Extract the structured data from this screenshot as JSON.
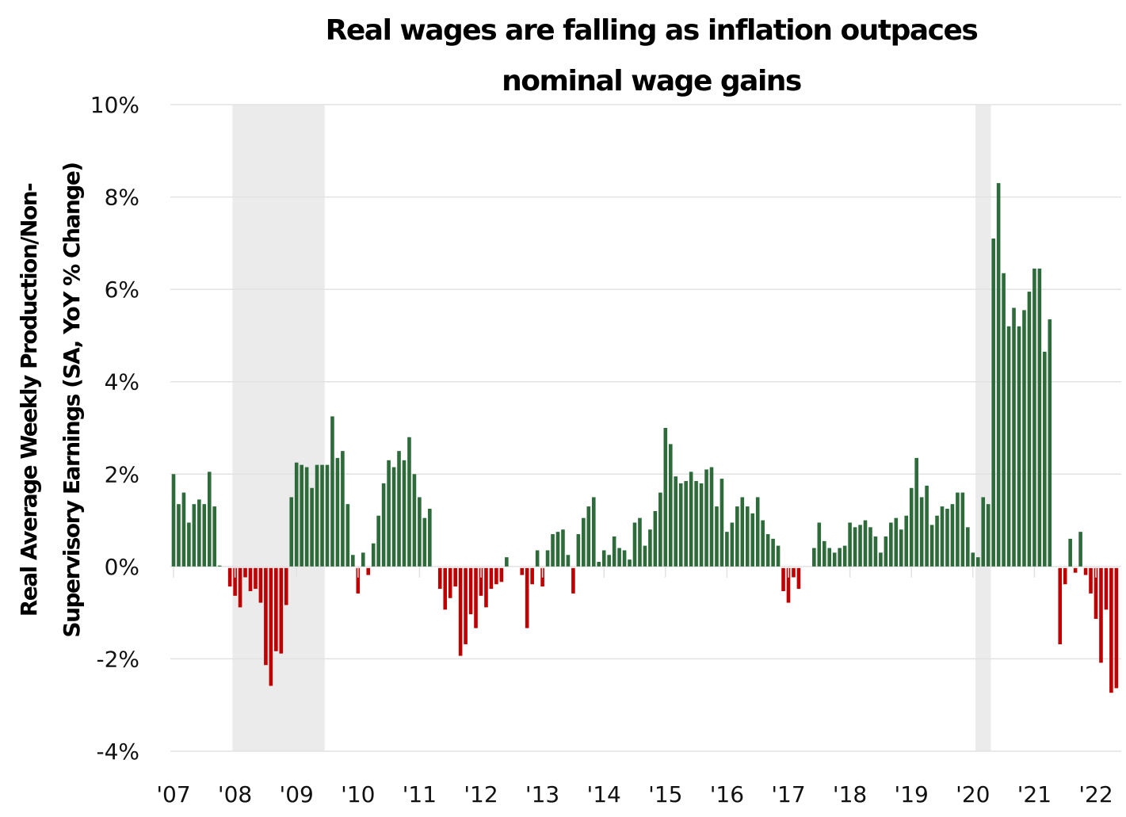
{
  "chart_data": {
    "type": "bar",
    "title": "Real wages are falling as inflation outpaces nominal wage gains",
    "title_lines": [
      "Real wages are falling as inflation outpaces",
      "nominal wage gains"
    ],
    "xlabel": "",
    "ylabel": "Real Average Weekly Production/Non-Supervisory Earnings (SA, YoY % Change)",
    "ylabel_lines": [
      "Real Average Weekly Production/Non-",
      "Supervisory Earnings (SA, YoY % Change)"
    ],
    "ylim": [
      -4,
      10
    ],
    "yticks": [
      -4,
      -2,
      0,
      2,
      4,
      6,
      8,
      10
    ],
    "ytick_labels": [
      "-4%",
      "-2%",
      "0%",
      "2%",
      "4%",
      "6%",
      "8%",
      "10%"
    ],
    "xtick_labels": [
      "'07",
      "'08",
      "'09",
      "'10",
      "'11",
      "'12",
      "'13",
      "'14",
      "'15",
      "'16",
      "'17",
      "'18",
      "'19",
      "'20",
      "'21",
      "'22"
    ],
    "start": "2007-01",
    "frequency": "monthly",
    "grid": true,
    "positive_color": "#2e6b3a",
    "negative_color": "#c00000",
    "recession_shading": [
      {
        "start": "2008-01",
        "end": "2009-06",
        "color": "#ebebeb"
      },
      {
        "start": "2020-02",
        "end": "2020-04",
        "color": "#ebebeb"
      }
    ],
    "values": [
      2.0,
      1.35,
      1.6,
      0.95,
      1.35,
      1.45,
      1.35,
      2.05,
      1.3,
      0.02,
      null,
      -0.4,
      -0.6,
      -0.85,
      -0.2,
      -0.5,
      -0.45,
      -0.75,
      -2.1,
      -2.55,
      -1.8,
      -1.85,
      -0.8,
      1.5,
      2.25,
      2.2,
      2.15,
      1.7,
      2.2,
      2.2,
      2.2,
      3.25,
      2.35,
      2.5,
      1.35,
      0.25,
      -0.55,
      0.3,
      -0.15,
      0.5,
      1.1,
      1.8,
      2.3,
      2.15,
      2.5,
      2.3,
      2.8,
      2.0,
      1.5,
      1.05,
      1.25,
      null,
      -0.45,
      -0.9,
      -0.65,
      -0.4,
      -1.9,
      -1.65,
      -1.0,
      -1.3,
      -0.6,
      -0.85,
      -0.45,
      -0.35,
      -0.3,
      0.2,
      null,
      null,
      -0.15,
      -1.3,
      -0.35,
      0.35,
      -0.4,
      0.35,
      0.7,
      0.75,
      0.8,
      0.25,
      -0.55,
      0.7,
      1.05,
      1.3,
      1.5,
      0.1,
      0.35,
      0.25,
      0.65,
      0.4,
      0.35,
      0.15,
      0.95,
      1.05,
      0.45,
      0.8,
      1.2,
      1.6,
      3.0,
      2.65,
      1.95,
      1.8,
      1.85,
      2.05,
      1.85,
      1.8,
      2.1,
      2.15,
      1.3,
      1.9,
      0.75,
      0.95,
      1.3,
      1.5,
      1.3,
      1.15,
      1.5,
      1.0,
      0.7,
      0.6,
      0.45,
      -0.5,
      -0.75,
      -0.2,
      -0.45,
      null,
      null,
      0.4,
      0.95,
      0.55,
      0.4,
      0.3,
      0.4,
      0.45,
      0.95,
      0.85,
      0.9,
      1.0,
      0.85,
      0.65,
      0.3,
      0.65,
      0.95,
      1.05,
      0.8,
      1.1,
      1.7,
      2.35,
      1.5,
      1.75,
      0.9,
      1.1,
      1.3,
      1.25,
      1.35,
      1.6,
      1.6,
      0.85,
      0.3,
      0.2,
      1.5,
      1.35,
      7.1,
      8.3,
      6.35,
      5.2,
      5.6,
      5.2,
      5.55,
      5.95,
      6.45,
      6.45,
      4.65,
      5.35,
      null,
      -1.65,
      -0.35,
      0.6,
      -0.1,
      0.75,
      -0.15,
      -0.55,
      -1.1,
      -2.05,
      -0.9,
      -2.7,
      -2.6
    ]
  }
}
